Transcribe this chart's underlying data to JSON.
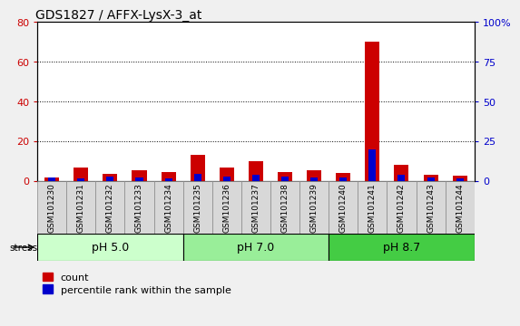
{
  "title": "GDS1827 / AFFX-LysX-3_at",
  "samples": [
    "GSM101230",
    "GSM101231",
    "GSM101232",
    "GSM101233",
    "GSM101234",
    "GSM101235",
    "GSM101236",
    "GSM101237",
    "GSM101238",
    "GSM101239",
    "GSM101240",
    "GSM101241",
    "GSM101242",
    "GSM101243",
    "GSM101244"
  ],
  "count_values": [
    1.5,
    6.5,
    3.5,
    5.5,
    4.5,
    13.0,
    6.5,
    10.0,
    4.5,
    5.5,
    4.0,
    70.0,
    8.0,
    3.0,
    2.5
  ],
  "percentile_values": [
    2.0,
    1.5,
    2.5,
    2.0,
    1.5,
    4.5,
    2.5,
    4.0,
    2.5,
    2.0,
    2.0,
    20.0,
    3.5,
    2.0,
    1.5
  ],
  "count_color": "#cc0000",
  "percentile_color": "#0000cc",
  "ylim_left": [
    0,
    80
  ],
  "ylim_right": [
    0,
    100
  ],
  "yticks_left": [
    0,
    20,
    40,
    60,
    80
  ],
  "ytick_labels_right": [
    "0",
    "25",
    "50",
    "75",
    "100%"
  ],
  "yticks_right": [
    0,
    25,
    50,
    75,
    100
  ],
  "groups": [
    {
      "label": "pH 5.0",
      "start": 0,
      "end": 5,
      "color": "#ccffcc"
    },
    {
      "label": "pH 7.0",
      "start": 5,
      "end": 10,
      "color": "#99ee99"
    },
    {
      "label": "pH 8.7",
      "start": 10,
      "end": 15,
      "color": "#44cc44"
    }
  ],
  "stress_label": "stress",
  "legend_count_label": "count",
  "legend_percentile_label": "percentile rank within the sample",
  "count_bar_width": 0.5,
  "percentile_bar_width": 0.25,
  "cell_bg_color": "#d8d8d8",
  "plot_bg": "#ffffff",
  "fig_bg": "#f0f0f0",
  "title_fontsize": 10,
  "axis_left_color": "#cc0000",
  "axis_right_color": "#0000cc",
  "label_fontsize": 6.5,
  "group_fontsize": 9,
  "legend_fontsize": 8
}
